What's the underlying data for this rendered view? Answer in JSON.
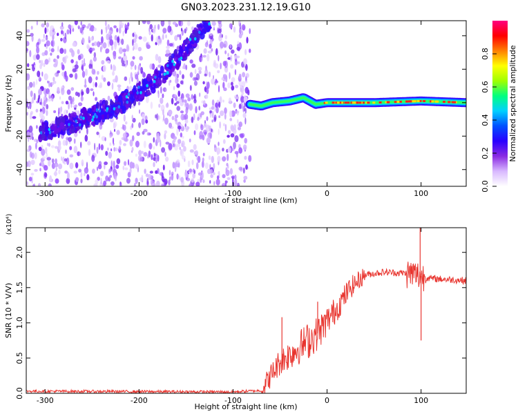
{
  "figure_title": "GN03.2023.231.12.19.G10",
  "chart_data": [
    {
      "type": "heatmap",
      "xlabel": "Height of straight line (km)",
      "ylabel": "Frequency (Hz)",
      "xlim": [
        -320,
        148
      ],
      "ylim": [
        -50,
        49
      ],
      "x_ticks": [
        -300,
        -200,
        -100,
        0,
        100
      ],
      "y_ticks": [
        -40,
        -20,
        0,
        20,
        40
      ],
      "colorbar": {
        "label": "Normalized spectral amplitude",
        "range": [
          0,
          1
        ],
        "ticks": [
          0.0,
          0.2,
          0.4,
          0.6,
          0.8
        ],
        "colors": [
          "#ffffff",
          "#d8b8ff",
          "#8a2be2",
          "#2a00ff",
          "#0050ff",
          "#00d0ff",
          "#00ff80",
          "#a0ff00",
          "#ffff00",
          "#ff8000",
          "#ff0000",
          "#ff0080"
        ]
      },
      "noisy_region": {
        "x_range": [
          -320,
          -82
        ],
        "y_range": [
          -50,
          49
        ]
      },
      "signal_track": [
        {
          "x": -300,
          "y": -17
        },
        {
          "x": -260,
          "y": -10
        },
        {
          "x": -220,
          "y": -1
        },
        {
          "x": -180,
          "y": 14
        },
        {
          "x": -150,
          "y": 32
        },
        {
          "x": -130,
          "y": 47
        }
      ],
      "carrier_track": [
        {
          "x": -82,
          "y": -1
        },
        {
          "x": -70,
          "y": -2
        },
        {
          "x": -58,
          "y": 0
        },
        {
          "x": -40,
          "y": 1
        },
        {
          "x": -25,
          "y": 3
        },
        {
          "x": -12,
          "y": -1
        },
        {
          "x": 0,
          "y": 0
        },
        {
          "x": 50,
          "y": 0
        },
        {
          "x": 100,
          "y": 1
        },
        {
          "x": 148,
          "y": 0
        }
      ]
    },
    {
      "type": "line",
      "xlabel": "Height of straight line (km)",
      "ylabel": "SNR (10 * V/V)",
      "y_multiplier": "(x10⁴)",
      "xlim": [
        -320,
        148
      ],
      "ylim": [
        0,
        2.35
      ],
      "x_ticks": [
        -300,
        -200,
        -100,
        0,
        100
      ],
      "y_ticks": [
        0.0,
        0.5,
        1.0,
        1.5,
        2.0
      ],
      "series": [
        {
          "color": "#e8342e",
          "envelope": [
            {
              "x": -320,
              "y": 0.03
            },
            {
              "x": -100,
              "y": 0.02
            },
            {
              "x": -70,
              "y": 0.04
            },
            {
              "x": -60,
              "y": 0.25
            },
            {
              "x": -50,
              "y": 0.45
            },
            {
              "x": -30,
              "y": 0.65
            },
            {
              "x": -10,
              "y": 0.85
            },
            {
              "x": 10,
              "y": 1.2
            },
            {
              "x": 25,
              "y": 1.5
            },
            {
              "x": 40,
              "y": 1.68
            },
            {
              "x": 60,
              "y": 1.72
            },
            {
              "x": 90,
              "y": 1.7
            },
            {
              "x": 110,
              "y": 1.63
            },
            {
              "x": 148,
              "y": 1.6
            }
          ],
          "spikes": [
            {
              "x": 99,
              "y": 2.35
            },
            {
              "x": 100,
              "y": 0.75
            },
            {
              "x": -48,
              "y": 1.08
            },
            {
              "x": -10,
              "y": 1.3
            }
          ]
        }
      ]
    }
  ]
}
